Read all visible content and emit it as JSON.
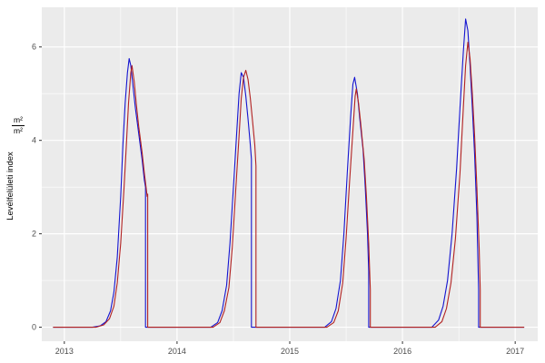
{
  "figure": {
    "y_axis_title": "Levélfelületi index",
    "y_axis_fraction_numerator": "m²",
    "y_axis_fraction_denominator": "m²"
  },
  "chart_data": {
    "type": "line",
    "title": "",
    "xlabel": "",
    "ylabel": "Levélfelületi index (m²/m²)",
    "x_ticks": [
      "2013",
      "2014",
      "2015",
      "2016",
      "2017"
    ],
    "x_tick_values": [
      2013,
      2014,
      2015,
      2016,
      2017
    ],
    "y_ticks": [
      "0",
      "2",
      "4",
      "6"
    ],
    "y_tick_values": [
      0,
      2,
      4,
      6
    ],
    "x_minor_ticks": [
      2013.5,
      2014.5,
      2015.5,
      2016.5
    ],
    "y_minor_ticks": [
      1,
      3,
      5
    ],
    "xlim": [
      2012.8,
      2017.2
    ],
    "ylim": [
      -0.3,
      6.85
    ],
    "grid": "major+minor",
    "legend": "none",
    "panel_background": "#EBEBEB",
    "gridline_color": "#FFFFFF",
    "tick_color": "#333333",
    "tick_label_color": "#4D4D4D",
    "series": [
      {
        "name": "blue-series",
        "color": "#1414D0",
        "points": [
          [
            2012.9,
            0
          ],
          [
            2013.25,
            0
          ],
          [
            2013.32,
            0.03
          ],
          [
            2013.37,
            0.12
          ],
          [
            2013.41,
            0.35
          ],
          [
            2013.44,
            0.75
          ],
          [
            2013.47,
            1.5
          ],
          [
            2013.5,
            2.8
          ],
          [
            2013.52,
            3.9
          ],
          [
            2013.54,
            4.8
          ],
          [
            2013.56,
            5.45
          ],
          [
            2013.575,
            5.75
          ],
          [
            2013.59,
            5.6
          ],
          [
            2013.61,
            5.15
          ],
          [
            2013.63,
            4.7
          ],
          [
            2013.66,
            4.15
          ],
          [
            2013.69,
            3.6
          ],
          [
            2013.71,
            3.15
          ],
          [
            2013.72,
            3.0
          ],
          [
            2013.72,
            0
          ],
          [
            2013.95,
            0
          ],
          [
            2014.3,
            0
          ],
          [
            2014.36,
            0.1
          ],
          [
            2014.4,
            0.35
          ],
          [
            2014.44,
            0.9
          ],
          [
            2014.47,
            1.8
          ],
          [
            2014.5,
            3.0
          ],
          [
            2014.53,
            4.2
          ],
          [
            2014.55,
            5.0
          ],
          [
            2014.57,
            5.45
          ],
          [
            2014.59,
            5.35
          ],
          [
            2014.61,
            4.95
          ],
          [
            2014.63,
            4.45
          ],
          [
            2014.65,
            3.9
          ],
          [
            2014.66,
            3.6
          ],
          [
            2014.66,
            0
          ],
          [
            2014.95,
            0
          ],
          [
            2015.31,
            0
          ],
          [
            2015.37,
            0.12
          ],
          [
            2015.41,
            0.4
          ],
          [
            2015.45,
            1.0
          ],
          [
            2015.48,
            2.0
          ],
          [
            2015.51,
            3.3
          ],
          [
            2015.54,
            4.5
          ],
          [
            2015.56,
            5.2
          ],
          [
            2015.575,
            5.35
          ],
          [
            2015.6,
            5.0
          ],
          [
            2015.62,
            4.5
          ],
          [
            2015.65,
            3.8
          ],
          [
            2015.67,
            3.0
          ],
          [
            2015.69,
            2.0
          ],
          [
            2015.7,
            1.2
          ],
          [
            2015.7,
            0
          ],
          [
            2015.95,
            0
          ],
          [
            2016.26,
            0
          ],
          [
            2016.32,
            0.15
          ],
          [
            2016.36,
            0.45
          ],
          [
            2016.4,
            1.0
          ],
          [
            2016.44,
            2.0
          ],
          [
            2016.48,
            3.4
          ],
          [
            2016.51,
            4.7
          ],
          [
            2016.54,
            5.9
          ],
          [
            2016.56,
            6.6
          ],
          [
            2016.58,
            6.35
          ],
          [
            2016.6,
            5.6
          ],
          [
            2016.62,
            4.7
          ],
          [
            2016.64,
            3.7
          ],
          [
            2016.66,
            2.4
          ],
          [
            2016.67,
            1.4
          ],
          [
            2016.675,
            0.8
          ],
          [
            2016.675,
            0
          ],
          [
            2017.08,
            0
          ]
        ]
      },
      {
        "name": "red-series",
        "color": "#B22222",
        "points": [
          [
            2012.9,
            0
          ],
          [
            2013.28,
            0
          ],
          [
            2013.35,
            0.05
          ],
          [
            2013.4,
            0.18
          ],
          [
            2013.44,
            0.45
          ],
          [
            2013.47,
            0.95
          ],
          [
            2013.5,
            1.8
          ],
          [
            2013.53,
            3.0
          ],
          [
            2013.55,
            3.9
          ],
          [
            2013.57,
            4.8
          ],
          [
            2013.59,
            5.45
          ],
          [
            2013.6,
            5.6
          ],
          [
            2013.62,
            5.25
          ],
          [
            2013.64,
            4.75
          ],
          [
            2013.66,
            4.3
          ],
          [
            2013.69,
            3.75
          ],
          [
            2013.71,
            3.3
          ],
          [
            2013.725,
            3.0
          ],
          [
            2013.735,
            2.8
          ],
          [
            2013.74,
            2.85
          ],
          [
            2013.74,
            0
          ],
          [
            2013.95,
            0
          ],
          [
            2014.32,
            0
          ],
          [
            2014.38,
            0.1
          ],
          [
            2014.42,
            0.35
          ],
          [
            2014.46,
            0.85
          ],
          [
            2014.49,
            1.7
          ],
          [
            2014.52,
            2.9
          ],
          [
            2014.55,
            4.1
          ],
          [
            2014.57,
            4.9
          ],
          [
            2014.59,
            5.35
          ],
          [
            2014.61,
            5.5
          ],
          [
            2014.63,
            5.3
          ],
          [
            2014.65,
            4.9
          ],
          [
            2014.67,
            4.4
          ],
          [
            2014.69,
            3.9
          ],
          [
            2014.7,
            3.45
          ],
          [
            2014.7,
            0
          ],
          [
            2014.95,
            0
          ],
          [
            2015.33,
            0
          ],
          [
            2015.39,
            0.1
          ],
          [
            2015.43,
            0.35
          ],
          [
            2015.47,
            0.95
          ],
          [
            2015.5,
            1.9
          ],
          [
            2015.53,
            3.1
          ],
          [
            2015.56,
            4.2
          ],
          [
            2015.58,
            4.95
          ],
          [
            2015.59,
            5.1
          ],
          [
            2015.61,
            4.8
          ],
          [
            2015.63,
            4.35
          ],
          [
            2015.66,
            3.6
          ],
          [
            2015.68,
            2.8
          ],
          [
            2015.7,
            1.8
          ],
          [
            2015.715,
            0.8
          ],
          [
            2015.715,
            0
          ],
          [
            2015.95,
            0
          ],
          [
            2016.29,
            0
          ],
          [
            2016.35,
            0.12
          ],
          [
            2016.39,
            0.4
          ],
          [
            2016.43,
            0.95
          ],
          [
            2016.47,
            1.9
          ],
          [
            2016.51,
            3.3
          ],
          [
            2016.54,
            4.7
          ],
          [
            2016.56,
            5.6
          ],
          [
            2016.58,
            6.1
          ],
          [
            2016.6,
            5.75
          ],
          [
            2016.62,
            5.0
          ],
          [
            2016.64,
            4.1
          ],
          [
            2016.66,
            3.0
          ],
          [
            2016.68,
            1.7
          ],
          [
            2016.69,
            0.8
          ],
          [
            2016.69,
            0
          ],
          [
            2017.08,
            0
          ]
        ]
      }
    ]
  }
}
